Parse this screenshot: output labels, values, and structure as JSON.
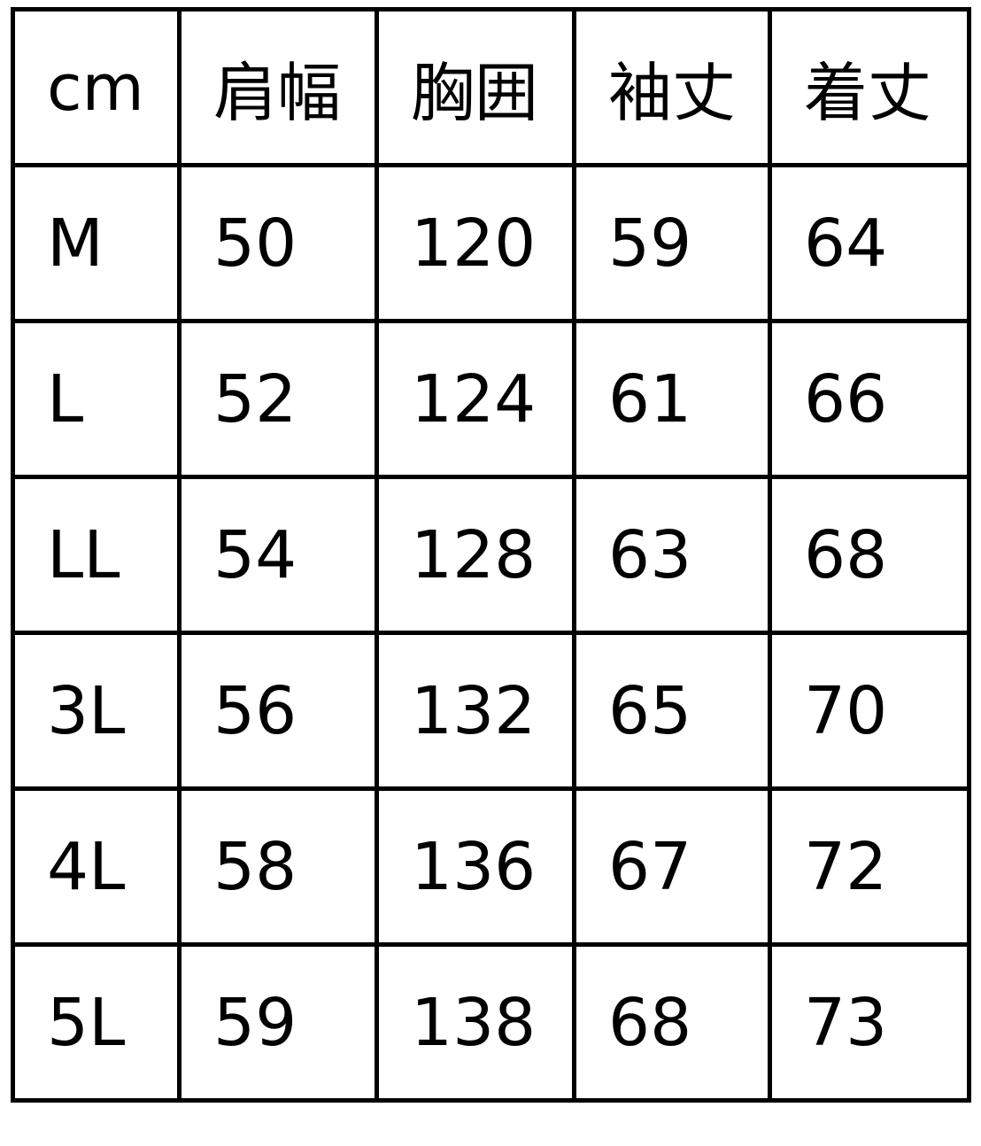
{
  "table": {
    "headers": [
      "cm",
      "肩幅",
      "胸囲",
      "袖丈",
      "着丈"
    ],
    "rows": [
      [
        "M",
        "50",
        "120",
        "59",
        "64"
      ],
      [
        "L",
        "52",
        "124",
        "61",
        "66"
      ],
      [
        "LL",
        "54",
        "128",
        "63",
        "68"
      ],
      [
        "3L",
        "56",
        "132",
        "65",
        "70"
      ],
      [
        "4L",
        "58",
        "136",
        "67",
        "72"
      ],
      [
        "5L",
        "59",
        "138",
        "68",
        "73"
      ]
    ]
  }
}
